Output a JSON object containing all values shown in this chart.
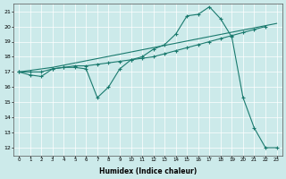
{
  "xlabel": "Humidex (Indice chaleur)",
  "bg_color": "#cceaea",
  "line_color": "#1a7a6e",
  "grid_color": "#ffffff",
  "xlim": [
    -0.5,
    23.5
  ],
  "ylim": [
    11.5,
    21.5
  ],
  "xticks": [
    0,
    1,
    2,
    3,
    4,
    5,
    6,
    7,
    8,
    9,
    10,
    11,
    12,
    13,
    14,
    15,
    16,
    17,
    18,
    19,
    20,
    21,
    22,
    23
  ],
  "yticks": [
    12,
    13,
    14,
    15,
    16,
    17,
    18,
    19,
    20,
    21
  ],
  "line1_x": [
    0,
    1,
    2,
    3,
    4,
    5,
    6,
    7,
    8,
    9,
    10,
    11,
    12,
    13,
    14,
    15,
    16,
    17,
    18,
    19,
    20,
    21,
    22,
    23
  ],
  "line1_y": [
    17,
    16.8,
    16.7,
    17.2,
    17.3,
    17.3,
    17.2,
    15.3,
    16.0,
    17.2,
    17.8,
    18.0,
    18.5,
    18.8,
    19.5,
    20.7,
    20.8,
    21.3,
    20.5,
    19.3,
    15.3,
    13.3,
    12.0,
    12.0
  ],
  "line2_x": [
    0,
    3,
    23
  ],
  "line2_y": [
    17,
    17.3,
    20.2
  ],
  "line3_x": [
    0,
    1,
    2,
    3,
    4,
    5,
    6,
    7,
    8,
    9,
    10,
    11,
    12,
    13,
    14,
    15,
    16,
    17,
    18,
    19,
    20,
    21,
    22
  ],
  "line3_y": [
    17,
    17.0,
    17.0,
    17.2,
    17.3,
    17.4,
    17.4,
    17.5,
    17.6,
    17.7,
    17.8,
    17.9,
    18.0,
    18.2,
    18.4,
    18.6,
    18.8,
    19.0,
    19.2,
    19.4,
    19.6,
    19.8,
    20.0
  ]
}
